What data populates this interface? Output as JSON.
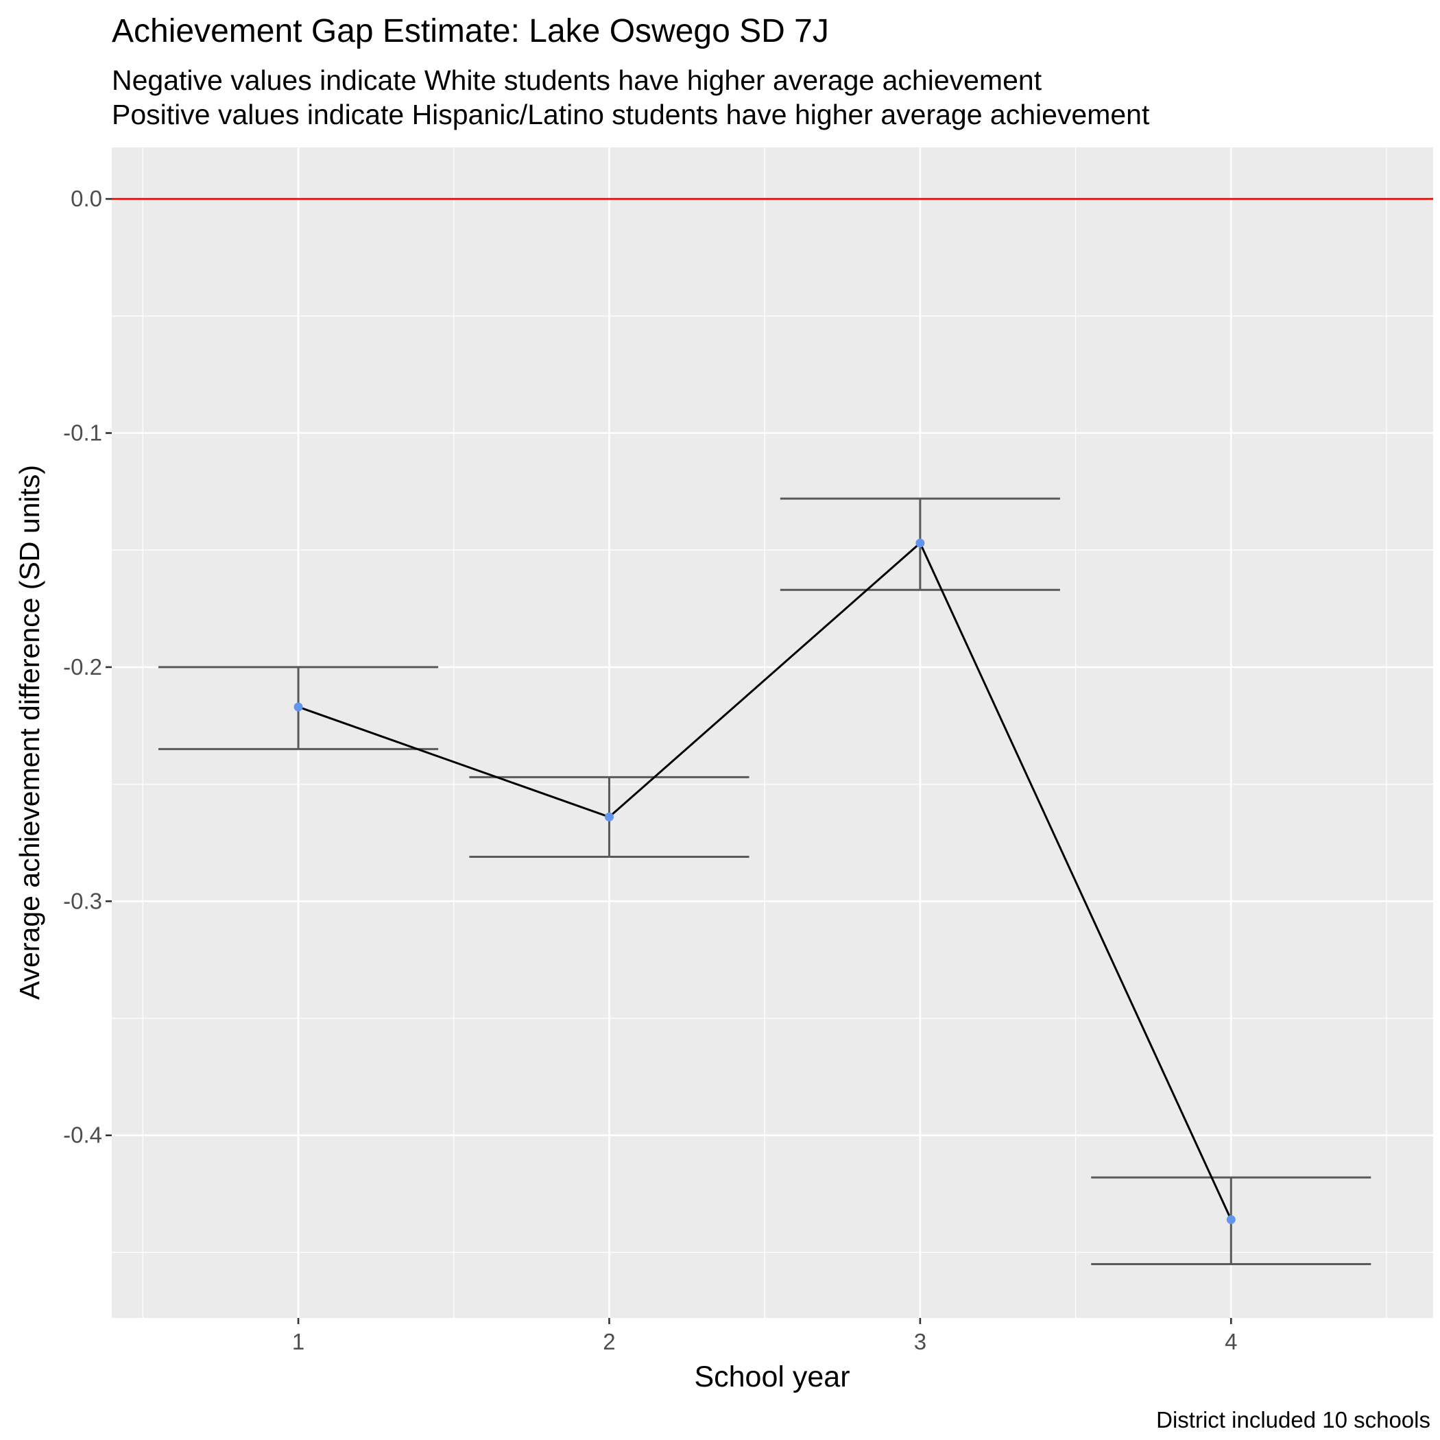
{
  "chart_data": {
    "type": "line",
    "title": "Achievement Gap Estimate: Lake Oswego SD 7J",
    "subtitle_lines": [
      "Negative values indicate White students have higher average achievement",
      "Positive values indicate Hispanic/Latino students have higher average achievement"
    ],
    "caption": "District included 10 schools",
    "xlabel": "School year",
    "ylabel": "Average achievement difference (SD units)",
    "x": [
      1,
      2,
      3,
      4
    ],
    "x_tick_labels": [
      "1",
      "2",
      "3",
      "4"
    ],
    "y_tick_labels": [
      "0.0",
      "-0.1",
      "-0.2",
      "-0.3",
      "-0.4"
    ],
    "y_ticks": [
      0.0,
      -0.1,
      -0.2,
      -0.3,
      -0.4
    ],
    "xlim": [
      0.4,
      4.65
    ],
    "ylim": [
      -0.478,
      0.022
    ],
    "series": [
      {
        "values": [
          -0.217,
          -0.264,
          -0.147,
          -0.436
        ],
        "lower": [
          -0.235,
          -0.281,
          -0.167,
          -0.455
        ],
        "upper": [
          -0.2,
          -0.247,
          -0.128,
          -0.418
        ]
      }
    ],
    "reference_line": {
      "y": 0.0,
      "color": "#ff0000"
    },
    "grid": true,
    "colors": {
      "panel": "#ebebeb",
      "grid": "#ffffff",
      "line": "#000000",
      "point": "#6495ed",
      "errorbar": "#595959",
      "axis_text": "#4d4d4d"
    }
  }
}
